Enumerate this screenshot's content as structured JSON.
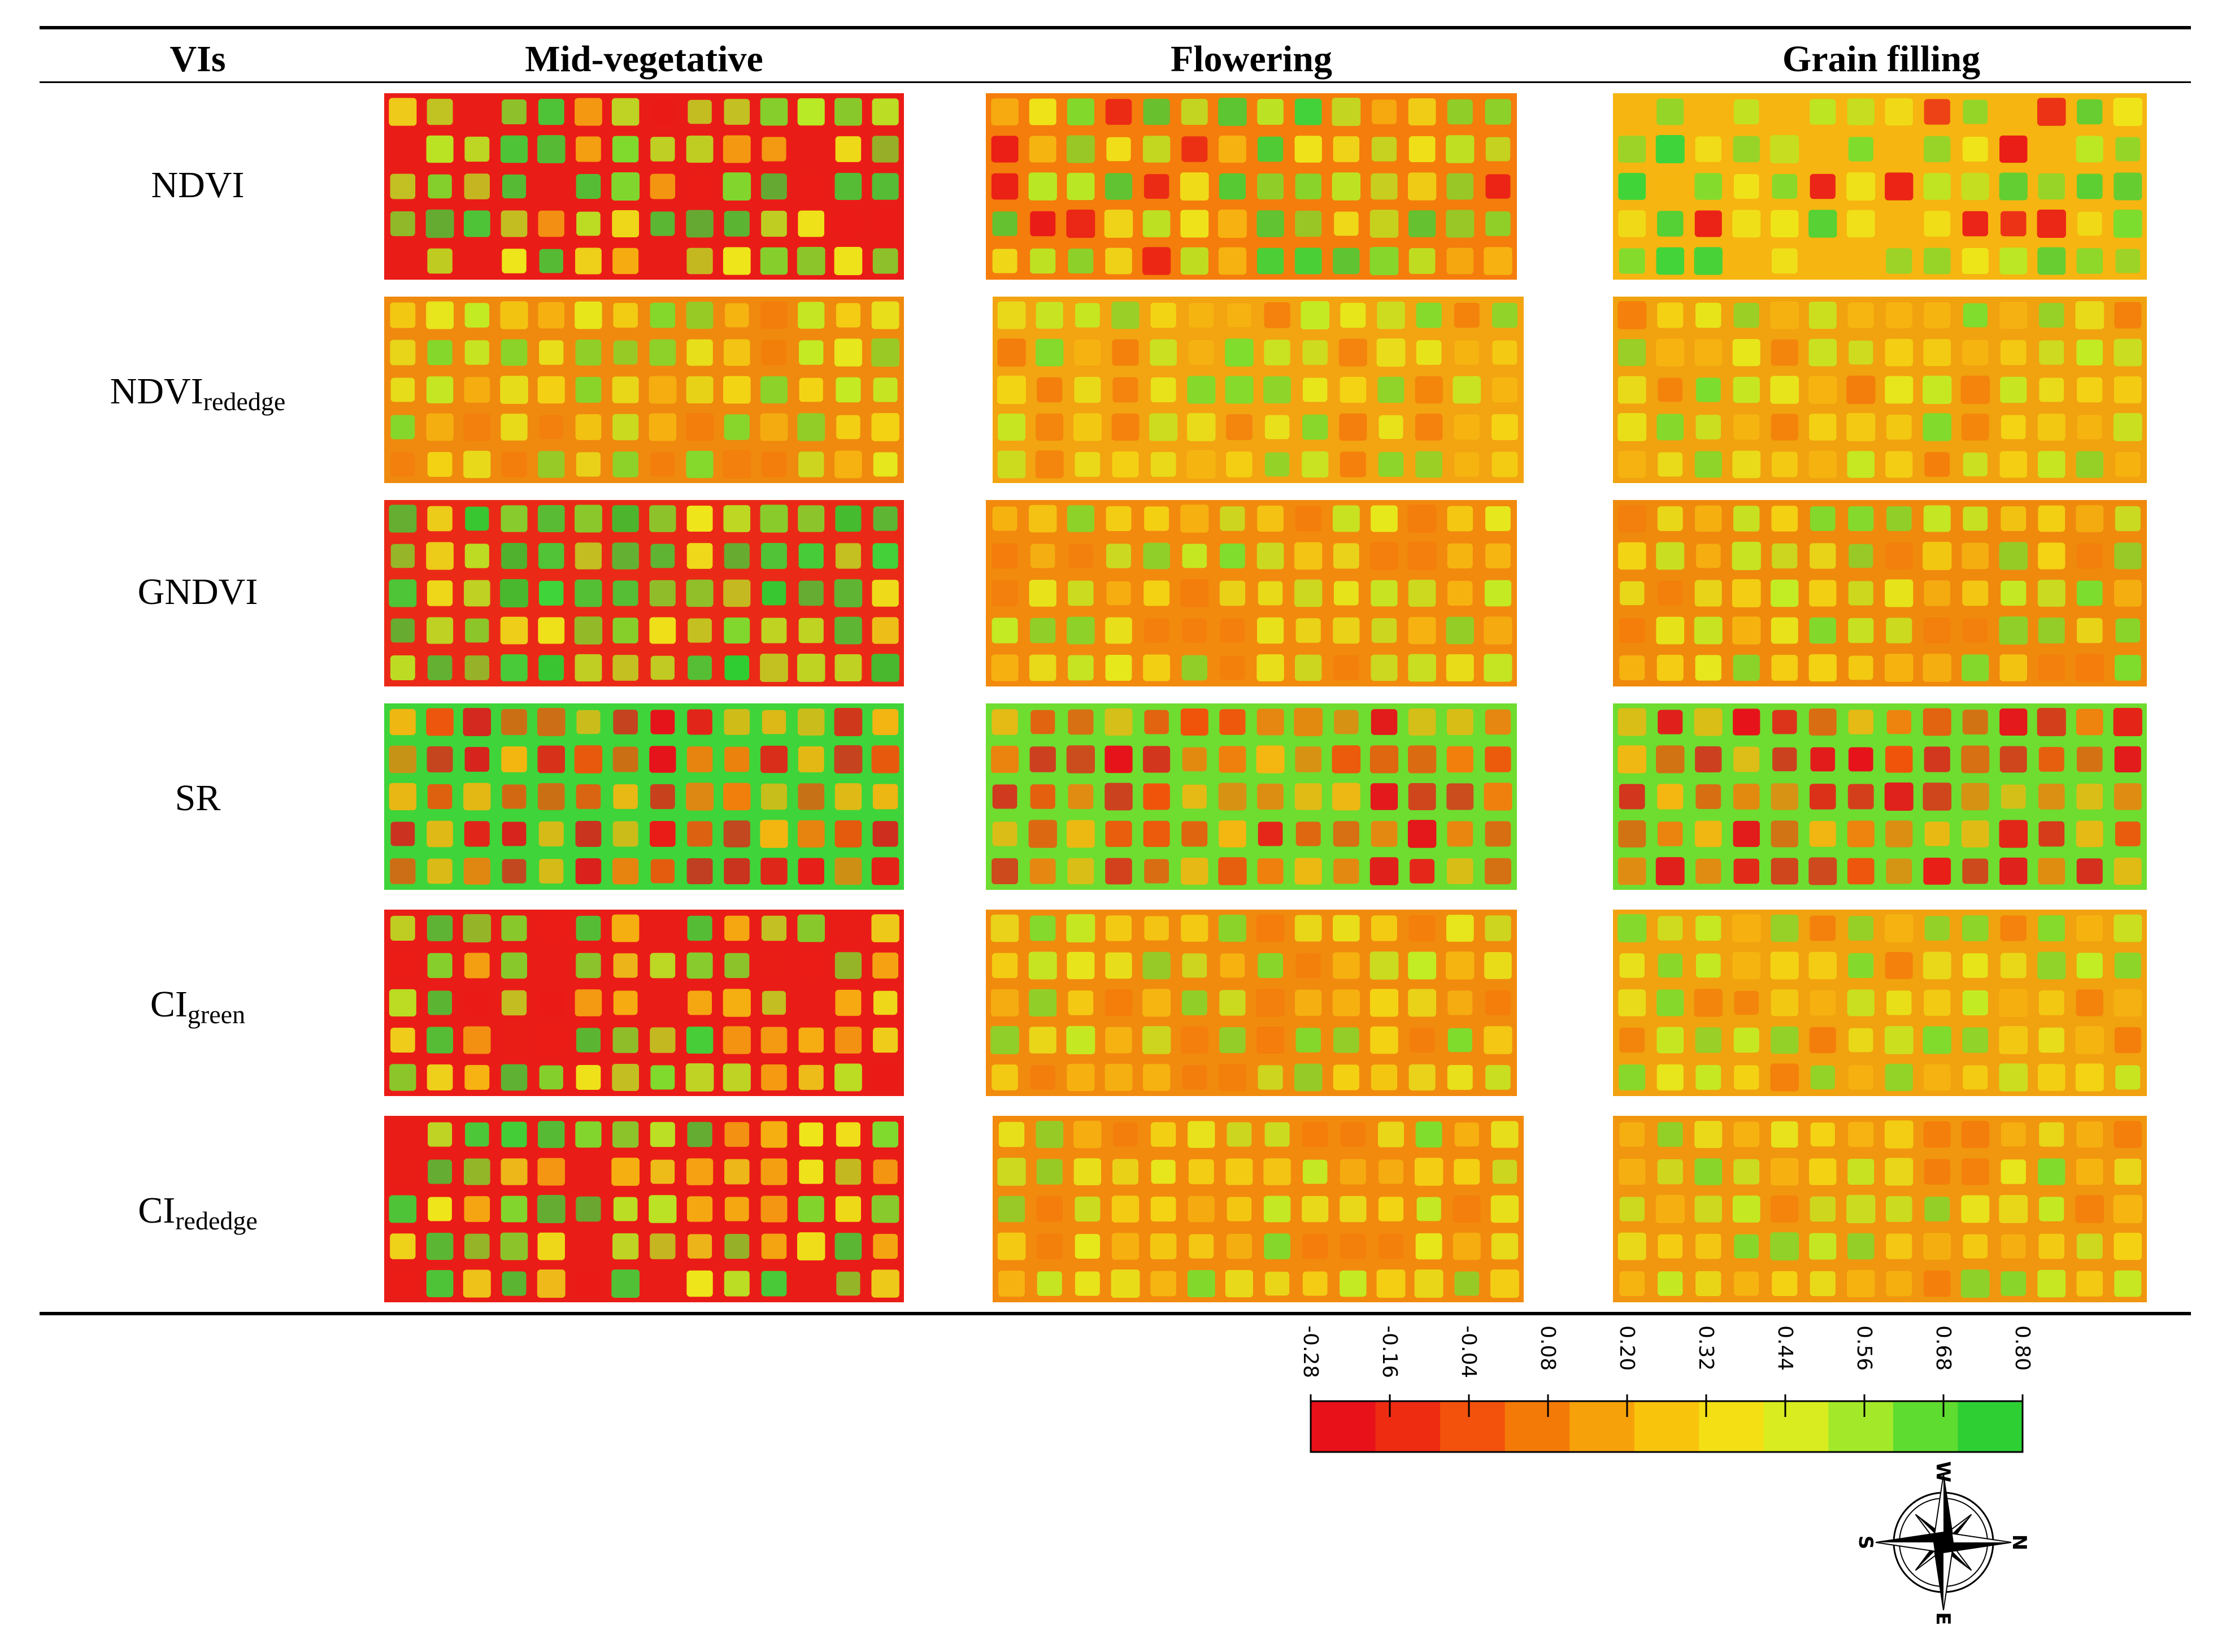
{
  "table": {
    "headers": [
      "VIs",
      "Mid-vegetative",
      "Flowering",
      "Grain filling"
    ],
    "rows": [
      {
        "label": "NDVI",
        "sub": ""
      },
      {
        "label": "NDVI",
        "sub": "rededge"
      },
      {
        "label": "GNDVI",
        "sub": ""
      },
      {
        "label": "SR",
        "sub": ""
      },
      {
        "label": "CI",
        "sub": "green"
      },
      {
        "label": "CI",
        "sub": "rededge"
      }
    ]
  },
  "legend": {
    "ticks": [
      "-0.28",
      "-0.16",
      "-0.04",
      "0.08",
      "0.20",
      "0.32",
      "0.44",
      "0.56",
      "0.68",
      "0.80"
    ],
    "colors": [
      "#e8111a",
      "#ee2c12",
      "#f2520b",
      "#f47a08",
      "#f6a10a",
      "#f8c40c",
      "#f3df14",
      "#d8ec20",
      "#a4e82a",
      "#5fdc30",
      "#2ecf33"
    ]
  },
  "compass": {
    "north": "N",
    "south": "S",
    "east": "E",
    "west": "W"
  },
  "maps": {
    "colors": {
      "red": "#ea1c17",
      "orange": "#f47d0c",
      "yellow": "#eee51a",
      "yellowgreen": "#c2ec24",
      "green": "#3fd43a"
    },
    "grid": {
      "cols": 14,
      "rows": 5
    },
    "cells": [
      {
        "row": 0,
        "col": 0,
        "bg": "#ea1c17",
        "plot_lo": 0.35,
        "plot_hi": 0.7,
        "plot_pal": "mix"
      },
      {
        "row": 0,
        "col": 1,
        "bg": "#f47d0c",
        "plot_lo": 0.4,
        "plot_hi": 0.85,
        "plot_pal": "mix"
      },
      {
        "row": 0,
        "col": 2,
        "bg": "#f6b511",
        "plot_lo": 0.35,
        "plot_hi": 0.75,
        "plot_pal": "mix"
      },
      {
        "row": 1,
        "col": 0,
        "bg": "#ef8a0e",
        "plot_lo": 0.45,
        "plot_hi": 0.7,
        "plot_pal": "soft"
      },
      {
        "row": 1,
        "col": 1,
        "bg": "#f3a411",
        "plot_lo": 0.45,
        "plot_hi": 0.72,
        "plot_pal": "soft"
      },
      {
        "row": 1,
        "col": 2,
        "bg": "#f1a20f",
        "plot_lo": 0.45,
        "plot_hi": 0.75,
        "plot_pal": "soft"
      },
      {
        "row": 2,
        "col": 0,
        "bg": "#ea2a16",
        "plot_lo": 0.55,
        "plot_hi": 0.9,
        "plot_pal": "green"
      },
      {
        "row": 2,
        "col": 1,
        "bg": "#f28a0e",
        "plot_lo": 0.45,
        "plot_hi": 0.75,
        "plot_pal": "soft"
      },
      {
        "row": 2,
        "col": 2,
        "bg": "#ef8a0d",
        "plot_lo": 0.45,
        "plot_hi": 0.72,
        "plot_pal": "soft"
      },
      {
        "row": 3,
        "col": 0,
        "bg": "#3fd43a",
        "plot_lo": 0.0,
        "plot_hi": 0.3,
        "plot_pal": "red"
      },
      {
        "row": 3,
        "col": 1,
        "bg": "#6fdc30",
        "plot_lo": 0.0,
        "plot_hi": 0.25,
        "plot_pal": "red"
      },
      {
        "row": 3,
        "col": 2,
        "bg": "#6fdc30",
        "plot_lo": 0.05,
        "plot_hi": 0.3,
        "plot_pal": "red"
      },
      {
        "row": 4,
        "col": 0,
        "bg": "#ea1c17",
        "plot_lo": 0.4,
        "plot_hi": 0.75,
        "plot_pal": "mix"
      },
      {
        "row": 4,
        "col": 1,
        "bg": "#f18b0e",
        "plot_lo": 0.4,
        "plot_hi": 0.7,
        "plot_pal": "soft"
      },
      {
        "row": 4,
        "col": 2,
        "bg": "#f1a20f",
        "plot_lo": 0.4,
        "plot_hi": 0.7,
        "plot_pal": "soft"
      },
      {
        "row": 5,
        "col": 0,
        "bg": "#ea1c17",
        "plot_lo": 0.4,
        "plot_hi": 0.72,
        "plot_pal": "mix"
      },
      {
        "row": 5,
        "col": 1,
        "bg": "#f28a0e",
        "plot_lo": 0.45,
        "plot_hi": 0.72,
        "plot_pal": "soft"
      },
      {
        "row": 5,
        "col": 2,
        "bg": "#f1960f",
        "plot_lo": 0.4,
        "plot_hi": 0.7,
        "plot_pal": "soft"
      }
    ]
  }
}
